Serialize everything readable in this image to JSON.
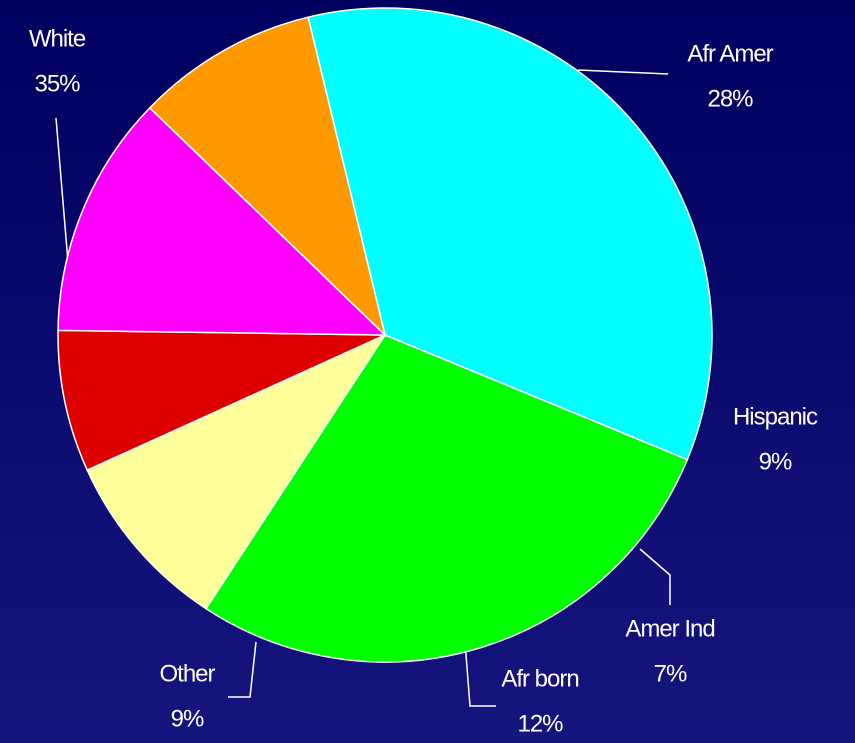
{
  "chart_data": {
    "type": "pie",
    "categories": [
      "White",
      "Afr Amer",
      "Hispanic",
      "Amer Ind",
      "Afr born",
      "Other"
    ],
    "values": [
      35,
      28,
      9,
      7,
      12,
      9
    ],
    "value_labels": [
      "35%",
      "28%",
      "9%",
      "7%",
      "12%",
      "9%"
    ],
    "colors": [
      "#00ffff",
      "#00ff00",
      "#ffff99",
      "#dd0000",
      "#ff00ff",
      "#ff9900"
    ]
  }
}
